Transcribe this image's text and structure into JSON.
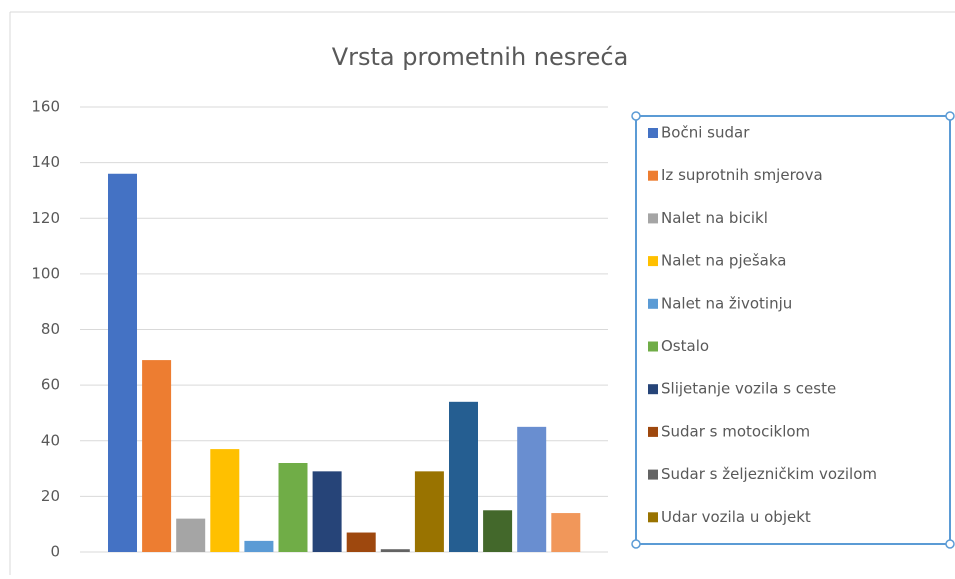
{
  "chart_data": {
    "type": "bar",
    "title": "Vrsta prometnih nesreća",
    "series": [
      {
        "name": "Bočni sudar",
        "color": "#4472c4",
        "values": [
          136
        ]
      },
      {
        "name": "Iz suprotnih smjerova",
        "color": "#ed7d31",
        "values": [
          69
        ]
      },
      {
        "name": "Nalet na bicikl",
        "color": "#a5a5a5",
        "values": [
          12
        ]
      },
      {
        "name": "Nalet na pješaka",
        "color": "#ffc000",
        "values": [
          37
        ]
      },
      {
        "name": "Nalet na životinju",
        "color": "#5b9bd5",
        "values": [
          4
        ]
      },
      {
        "name": "Ostalo",
        "color": "#70ad47",
        "values": [
          32
        ]
      },
      {
        "name": "Slijetanje vozila s ceste",
        "color": "#264478",
        "values": [
          29
        ]
      },
      {
        "name": "Sudar s motociklom",
        "color": "#9e480e",
        "values": [
          7
        ]
      },
      {
        "name": "Sudar s željezničkim vozilom",
        "color": "#636363",
        "values": [
          1
        ]
      },
      {
        "name": "Udar vozila u objekt",
        "color": "#997300",
        "values": [
          29
        ]
      },
      {
        "name": null,
        "color": "#255e91",
        "values": [
          54
        ]
      },
      {
        "name": null,
        "color": "#43682b",
        "values": [
          15
        ]
      },
      {
        "name": null,
        "color": "#698ed0",
        "values": [
          45
        ]
      },
      {
        "name": null,
        "color": "#f1975a",
        "values": [
          14
        ]
      }
    ],
    "ylim": [
      0,
      160
    ],
    "yticks": [
      0,
      20,
      40,
      60,
      80,
      100,
      120,
      140,
      160
    ],
    "grid": true,
    "legend": "right"
  }
}
